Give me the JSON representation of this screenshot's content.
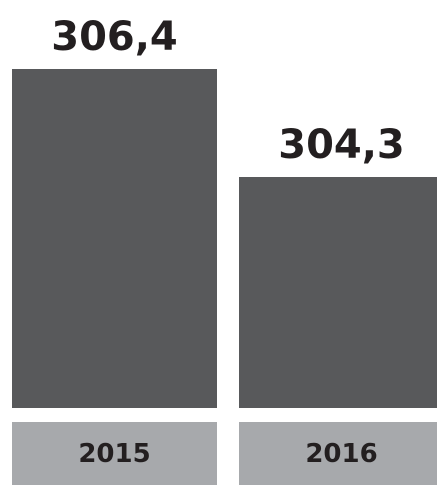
{
  "chart_data": {
    "type": "bar",
    "categories": [
      "2015",
      "2016"
    ],
    "values": [
      306.4,
      304.3
    ],
    "value_labels": [
      "306,4",
      "304,3"
    ],
    "title": "",
    "xlabel": "",
    "ylabel": "",
    "ylim": [
      299.8,
      306.4
    ],
    "grid": false,
    "legend": "none"
  },
  "colors": {
    "bar": "#58595b",
    "category_box": "#a7a9ac",
    "text": "#231f20"
  }
}
